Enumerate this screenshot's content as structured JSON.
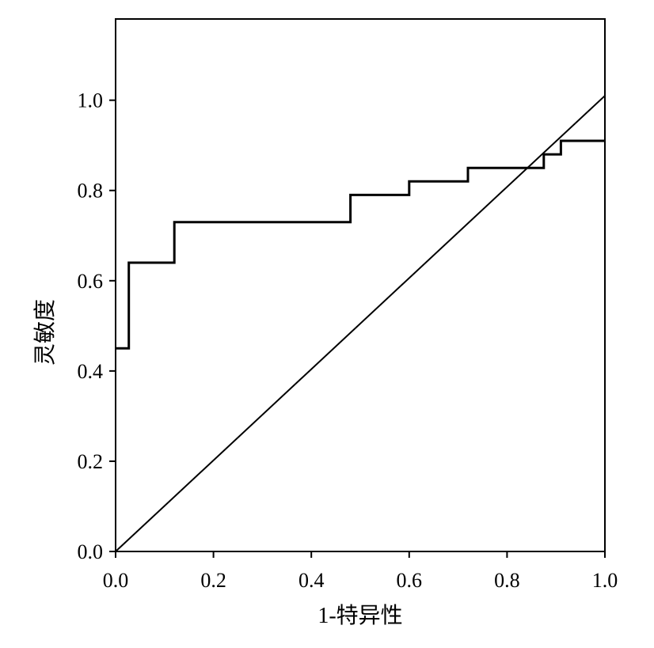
{
  "chart_data": {
    "type": "line",
    "title": "",
    "xlabel": "1-特异性",
    "ylabel": "灵敏度",
    "xlim": [
      0.0,
      1.0
    ],
    "ylim": [
      0.0,
      1.18
    ],
    "grid": false,
    "x_ticks": [
      "0.0",
      "0.2",
      "0.4",
      "0.6",
      "0.8",
      "1.0"
    ],
    "y_ticks": [
      "0.0",
      "0.2",
      "0.4",
      "0.6",
      "0.8",
      "1.0"
    ],
    "series": [
      {
        "kind": "step",
        "points": [
          [
            0.0,
            0.45
          ],
          [
            0.027,
            0.45
          ],
          [
            0.027,
            0.64
          ],
          [
            0.12,
            0.64
          ],
          [
            0.12,
            0.73
          ],
          [
            0.48,
            0.73
          ],
          [
            0.48,
            0.79
          ],
          [
            0.6,
            0.79
          ],
          [
            0.6,
            0.82
          ],
          [
            0.72,
            0.82
          ],
          [
            0.72,
            0.85
          ],
          [
            0.875,
            0.85
          ],
          [
            0.875,
            0.88
          ],
          [
            0.91,
            0.88
          ],
          [
            0.91,
            0.91
          ],
          [
            1.0,
            0.91
          ]
        ]
      },
      {
        "kind": "reference",
        "points": [
          [
            0.0,
            0.0
          ],
          [
            1.0,
            1.01
          ]
        ]
      }
    ],
    "colors": {
      "line": "#000000",
      "axis": "#000000"
    }
  }
}
